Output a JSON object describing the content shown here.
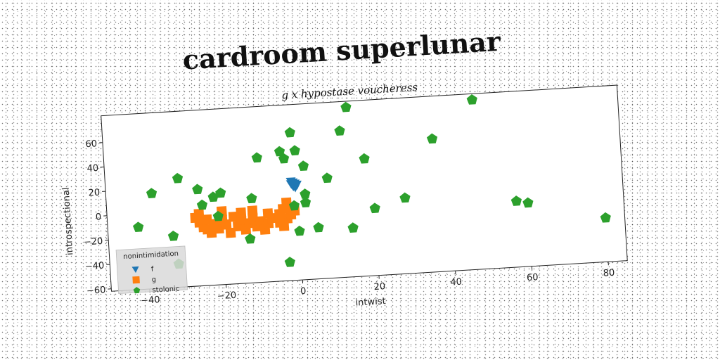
{
  "chart_data": {
    "type": "scatter",
    "title": "cardroom superlunar",
    "subtitle": "g x hypostase voucheress",
    "xlabel": "intwist",
    "ylabel": "introspectional",
    "xlim": [
      -50,
      85
    ],
    "ylim": [
      -62,
      82
    ],
    "x_ticks": [
      "−40",
      "−20",
      "0",
      "20",
      "40",
      "60",
      "80"
    ],
    "y_ticks": [
      "−60",
      "−40",
      "−20",
      "0",
      "20",
      "40",
      "60"
    ],
    "grid": false,
    "legend": {
      "title": "nonintimidation",
      "placement": "bottom-left"
    },
    "series": [
      {
        "name": "f",
        "color": "#1f77b4",
        "marker": "triangle-down",
        "points": [
          [
            -1.5,
            17
          ],
          [
            -0.5,
            17
          ],
          [
            -1,
            15
          ],
          [
            -1.5,
            19
          ],
          [
            -0.5,
            14
          ],
          [
            -1,
            18
          ],
          [
            -1.2,
            16
          ],
          [
            0,
            16
          ]
        ]
      },
      {
        "name": "g",
        "color": "#ff7f0e",
        "marker": "square",
        "points": [
          [
            -27,
            -6
          ],
          [
            -26,
            -10
          ],
          [
            -25,
            -14
          ],
          [
            -24,
            -8
          ],
          [
            -23,
            -19
          ],
          [
            -22,
            -12
          ],
          [
            -21,
            -16
          ],
          [
            -20,
            -9
          ],
          [
            -19,
            -13
          ],
          [
            -18,
            -20
          ],
          [
            -17,
            -7
          ],
          [
            -16,
            -15
          ],
          [
            -15,
            -11
          ],
          [
            -14,
            -18
          ],
          [
            -13,
            -13
          ],
          [
            -12,
            -9
          ],
          [
            -11,
            -16
          ],
          [
            -10,
            -12
          ],
          [
            -9,
            -19
          ],
          [
            -8,
            -14
          ],
          [
            -7,
            -10
          ],
          [
            -12,
            -3
          ],
          [
            -5,
            -14
          ],
          [
            -4,
            -17
          ],
          [
            -3,
            -11
          ],
          [
            -2,
            -8
          ],
          [
            -3,
            2
          ],
          [
            -1,
            -5
          ],
          [
            -5,
            -7
          ],
          [
            -24,
            -16
          ],
          [
            -26,
            -3
          ],
          [
            -20,
            -2
          ],
          [
            -15,
            -4
          ],
          [
            -8,
            -6
          ],
          [
            -2,
            -2
          ],
          [
            -4,
            -3
          ]
        ]
      },
      {
        "name": "stolonic",
        "color": "#2ca02c",
        "marker": "pentagon",
        "points": [
          [
            14,
            77
          ],
          [
            47,
            77
          ],
          [
            -1,
            59
          ],
          [
            12,
            58
          ],
          [
            -4,
            44
          ],
          [
            0,
            44
          ],
          [
            36,
            47
          ],
          [
            -10,
            40
          ],
          [
            -3,
            38
          ],
          [
            18,
            34
          ],
          [
            2,
            31
          ],
          [
            -31,
            27
          ],
          [
            8,
            20
          ],
          [
            -38,
            16
          ],
          [
            -26,
            17
          ],
          [
            -20,
            13
          ],
          [
            -22,
            10
          ],
          [
            -12,
            7
          ],
          [
            2,
            8
          ],
          [
            28,
            0
          ],
          [
            -25,
            4
          ],
          [
            20,
            -7
          ],
          [
            2,
            1
          ],
          [
            -1,
            -1
          ],
          [
            -21,
            -6
          ],
          [
            57,
            -8
          ],
          [
            60,
            -10
          ],
          [
            -42,
            -11
          ],
          [
            -33,
            -20
          ],
          [
            5,
            -20
          ],
          [
            0,
            -22
          ],
          [
            14,
            -22
          ],
          [
            -13,
            -26
          ],
          [
            80,
            -26
          ],
          [
            -32,
            -43
          ],
          [
            -3,
            -47
          ]
        ]
      }
    ]
  }
}
